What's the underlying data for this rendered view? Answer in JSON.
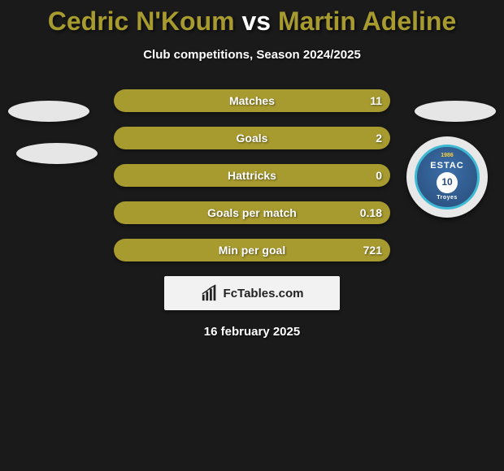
{
  "title": {
    "player1": "Cedric N'Koum",
    "vs": "vs",
    "player2": "Martin Adeline",
    "player1_color": "#a79a2f",
    "player2_color": "#a79a2f",
    "vs_color": "#ffffff"
  },
  "subtitle": "Club competitions, Season 2024/2025",
  "stats": {
    "bar_left_color": "#a79a2f",
    "bar_right_color": "#a79a2f",
    "rows": [
      {
        "label": "Matches",
        "left": "",
        "right": "11",
        "split": 0.06
      },
      {
        "label": "Goals",
        "left": "",
        "right": "2",
        "split": 0.02
      },
      {
        "label": "Hattricks",
        "left": "",
        "right": "0",
        "split": 0.0
      },
      {
        "label": "Goals per match",
        "left": "",
        "right": "0.18",
        "split": 0.02
      },
      {
        "label": "Min per goal",
        "left": "",
        "right": "721",
        "split": 0.02
      }
    ]
  },
  "badge": {
    "year": "1986",
    "estac": "ESTAC",
    "num": "10",
    "city": "Troyes"
  },
  "footer": {
    "logo_text": "FcTables.com",
    "date": "16 february 2025"
  },
  "colors": {
    "background": "#1a1a1a"
  }
}
